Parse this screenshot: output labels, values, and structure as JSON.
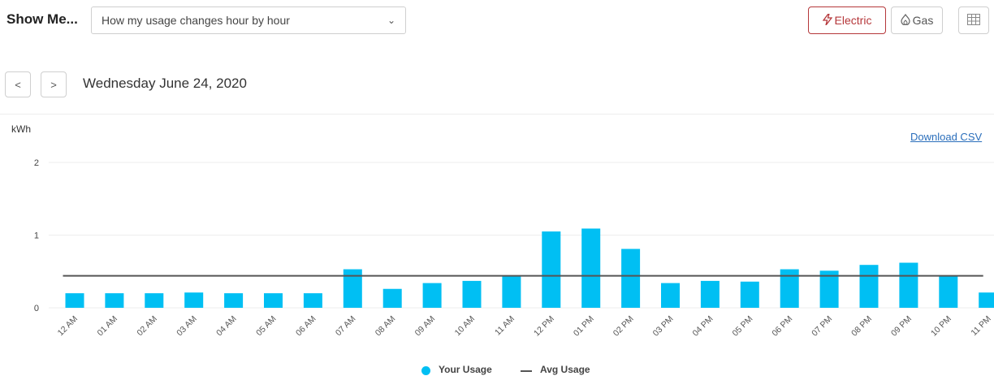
{
  "header": {
    "show_me_label": "Show Me...",
    "view_select": {
      "value": "How my usage changes hour by hour",
      "icon": "chevron-down-icon"
    },
    "buttons": {
      "electric": {
        "label": "Electric",
        "icon": "lightning-bolt-icon",
        "active": true
      },
      "gas": {
        "label": "Gas",
        "icon": "flame-icon"
      },
      "table_view": {
        "icon": "table-grid-icon"
      }
    }
  },
  "date_nav": {
    "prev_label": "<",
    "next_label": ">",
    "date": "Wednesday June 24, 2020"
  },
  "download_label": "Download CSV",
  "colors": {
    "bar": "#00bff3",
    "avg_line": "#555555",
    "accent": "#b5373a",
    "link": "#2a6ebb"
  },
  "chart_data": {
    "type": "bar",
    "ylabel": "kWh",
    "ylim": [
      0,
      2
    ],
    "yticks": [
      0,
      1,
      2
    ],
    "categories": [
      "12 AM",
      "01 AM",
      "02 AM",
      "03 AM",
      "04 AM",
      "05 AM",
      "06 AM",
      "07 AM",
      "08 AM",
      "09 AM",
      "10 AM",
      "11 AM",
      "12 PM",
      "01 PM",
      "02 PM",
      "03 PM",
      "04 PM",
      "05 PM",
      "06 PM",
      "07 PM",
      "08 PM",
      "09 PM",
      "10 PM",
      "11 PM"
    ],
    "series": [
      {
        "name": "Your Usage",
        "type": "bar",
        "values": [
          0.2,
          0.2,
          0.2,
          0.21,
          0.2,
          0.2,
          0.2,
          0.53,
          0.26,
          0.34,
          0.37,
          0.43,
          1.05,
          1.09,
          0.81,
          0.34,
          0.37,
          0.36,
          0.53,
          0.51,
          0.59,
          0.62,
          0.44,
          0.21
        ]
      },
      {
        "name": "Avg Usage",
        "type": "line",
        "value": 0.44
      }
    ],
    "legend_position": "bottom",
    "grid": true
  }
}
